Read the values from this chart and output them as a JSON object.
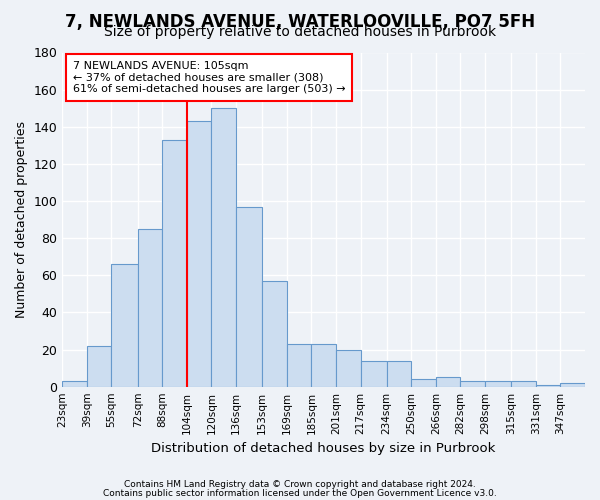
{
  "title": "7, NEWLANDS AVENUE, WATERLOOVILLE, PO7 5FH",
  "subtitle": "Size of property relative to detached houses in Purbrook",
  "xlabel": "Distribution of detached houses by size in Purbrook",
  "ylabel": "Number of detached properties",
  "bin_labels": [
    "23sqm",
    "39sqm",
    "55sqm",
    "72sqm",
    "88sqm",
    "104sqm",
    "120sqm",
    "136sqm",
    "153sqm",
    "169sqm",
    "185sqm",
    "201sqm",
    "217sqm",
    "234sqm",
    "250sqm",
    "266sqm",
    "282sqm",
    "298sqm",
    "315sqm",
    "331sqm",
    "347sqm"
  ],
  "bar_heights": [
    3,
    22,
    66,
    85,
    133,
    143,
    150,
    97,
    57,
    23,
    23,
    20,
    14,
    14,
    4,
    5,
    3,
    3,
    3,
    1,
    2
  ],
  "bar_color": "#ccddf0",
  "bar_edge_color": "#6699cc",
  "vline_x_index": 5,
  "bin_edges": [
    23,
    39,
    55,
    72,
    88,
    104,
    120,
    136,
    153,
    169,
    185,
    201,
    217,
    234,
    250,
    266,
    282,
    298,
    315,
    331,
    347,
    363
  ],
  "annotation_text": "7 NEWLANDS AVENUE: 105sqm\n← 37% of detached houses are smaller (308)\n61% of semi-detached houses are larger (503) →",
  "annotation_box_color": "white",
  "annotation_box_edge_color": "red",
  "vline_color": "red",
  "ylim": [
    0,
    180
  ],
  "yticks": [
    0,
    20,
    40,
    60,
    80,
    100,
    120,
    140,
    160,
    180
  ],
  "footnote1": "Contains HM Land Registry data © Crown copyright and database right 2024.",
  "footnote2": "Contains public sector information licensed under the Open Government Licence v3.0.",
  "background_color": "#eef2f7",
  "grid_color": "#ffffff",
  "title_fontsize": 12,
  "subtitle_fontsize": 10,
  "vline_x": 104
}
